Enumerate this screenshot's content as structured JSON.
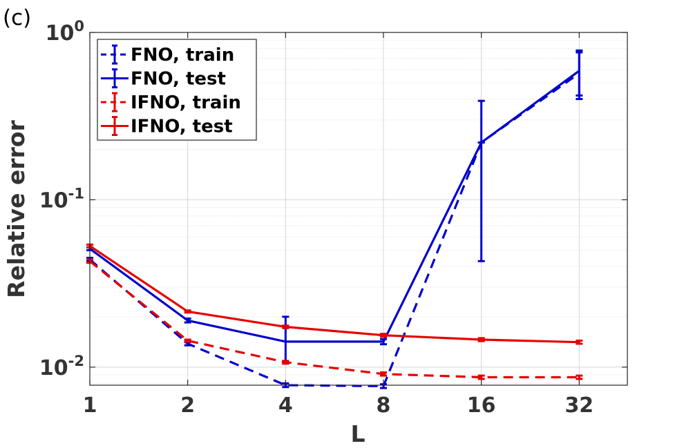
{
  "panel_label": "(c)",
  "chart_data": {
    "type": "line",
    "xlabel": "L",
    "ylabel": "Relative error",
    "x_scale": "log2",
    "y_scale": "log10",
    "xlim": [
      1,
      45
    ],
    "ylim": [
      0.0078,
      1.0
    ],
    "x": [
      1,
      2,
      4,
      8,
      16,
      32
    ],
    "x_tick_labels": [
      "1",
      "2",
      "4",
      "8",
      "16",
      "32"
    ],
    "y_ticks": [
      {
        "base": "10",
        "exp": "-2",
        "value": 0.01
      },
      {
        "base": "10",
        "exp": "-1",
        "value": 0.1
      },
      {
        "base": "10",
        "exp": "0",
        "value": 1
      }
    ],
    "grid": true,
    "legend_position": "top-left",
    "series": [
      {
        "name": "FNO, train",
        "color": "#0000cc",
        "dash": "dashed",
        "values": [
          0.044,
          0.0138,
          0.0078,
          0.0077,
          0.22,
          0.57
        ],
        "err_low": [
          0.043,
          0.0135,
          0.0076,
          0.0075,
          0.22,
          0.42
        ],
        "err_high": [
          0.045,
          0.0141,
          0.008,
          0.0079,
          0.22,
          0.76
        ]
      },
      {
        "name": "FNO, test",
        "color": "#0000cc",
        "dash": "solid",
        "values": [
          0.051,
          0.019,
          0.0142,
          0.0142,
          0.22,
          0.59
        ],
        "err_low": [
          0.05,
          0.0185,
          0.0105,
          0.0137,
          0.043,
          0.4
        ],
        "err_high": [
          0.052,
          0.0195,
          0.02,
          0.0147,
          0.39,
          0.78
        ]
      },
      {
        "name": "IFNO, train",
        "color": "#e60000",
        "dash": "dashed",
        "values": [
          0.043,
          0.0144,
          0.0107,
          0.0091,
          0.0087,
          0.0087
        ],
        "err_low": [
          0.042,
          0.0142,
          0.0105,
          0.0089,
          0.0085,
          0.0085
        ],
        "err_high": [
          0.044,
          0.0146,
          0.0109,
          0.0093,
          0.0089,
          0.0089
        ]
      },
      {
        "name": "IFNO, test",
        "color": "#e60000",
        "dash": "solid",
        "values": [
          0.053,
          0.0215,
          0.0174,
          0.0155,
          0.0146,
          0.0141
        ],
        "err_low": [
          0.052,
          0.0212,
          0.0171,
          0.0152,
          0.0143,
          0.0138
        ],
        "err_high": [
          0.054,
          0.0218,
          0.0177,
          0.0158,
          0.0149,
          0.0144
        ]
      }
    ]
  }
}
